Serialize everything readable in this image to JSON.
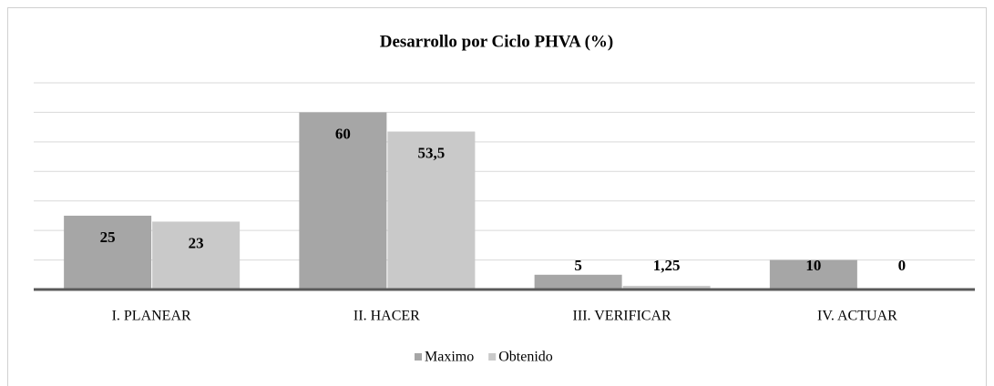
{
  "chart_data": {
    "type": "bar",
    "title": "Desarrollo por Ciclo PHVA (%)",
    "categories": [
      "I. PLANEAR",
      "II. HACER",
      "III. VERIFICAR",
      "IV. ACTUAR"
    ],
    "series": [
      {
        "name": "Maximo",
        "color": "#a6a6a6",
        "values": [
          25,
          60,
          5,
          10
        ],
        "value_labels": [
          "25",
          "60",
          "5",
          "10"
        ]
      },
      {
        "name": "Obtenido",
        "color": "#c9c9c9",
        "values": [
          23,
          53.5,
          1.25,
          0
        ],
        "value_labels": [
          "23",
          "53,5",
          "1,25",
          "0"
        ]
      }
    ],
    "ylim": [
      0,
      70
    ],
    "yticks": [
      0,
      10,
      20,
      30,
      40,
      50,
      60,
      70
    ],
    "grid": true,
    "legend": "bottom"
  }
}
